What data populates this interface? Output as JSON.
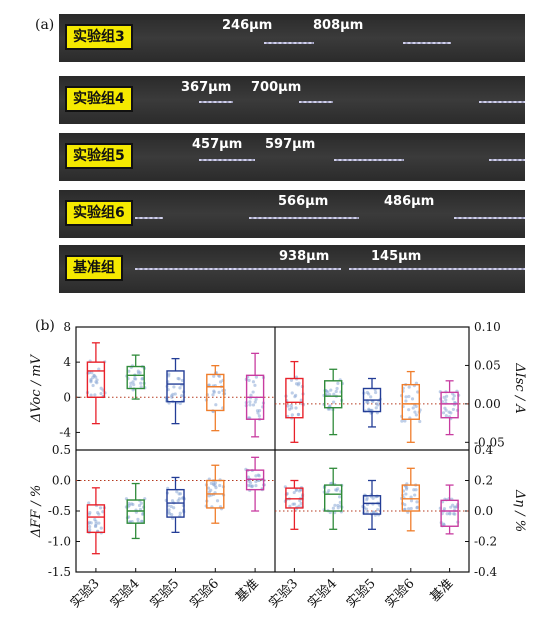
{
  "panel_a": {
    "label": "(a)",
    "strips": [
      {
        "label": "实验组3",
        "measurements": [
          "246μm",
          "808μm"
        ]
      },
      {
        "label": "实验组4",
        "measurements": [
          "367μm",
          "700μm"
        ]
      },
      {
        "label": "实验组5",
        "measurements": [
          "457μm",
          "597μm"
        ]
      },
      {
        "label": "实验组6",
        "measurements": [
          "566μm",
          "486μm"
        ]
      },
      {
        "label": "基准组",
        "measurements": [
          "938μm",
          "145μm"
        ]
      }
    ]
  },
  "panel_b": {
    "label": "(b)",
    "colors": {
      "实验3": "#e8212a",
      "实验4": "#2f8b3a",
      "实验5": "#233d96",
      "实验6": "#ef7d2b",
      "基准": "#c83ca0"
    }
  },
  "chart_data": [
    {
      "type": "box",
      "position": "top-left",
      "ylabel": "ΔVoc / mV",
      "ylim": [
        -6,
        8
      ],
      "yticks": [
        -4,
        0,
        4,
        8
      ],
      "reference_line": 0,
      "categories": [
        "实验3",
        "实验4",
        "实验5",
        "实验6",
        "基准"
      ],
      "boxes": [
        {
          "name": "实验3",
          "whisker_low": -3.0,
          "q1": 0.0,
          "median": 3.0,
          "q3": 4.0,
          "whisker_high": 6.2
        },
        {
          "name": "实验4",
          "whisker_low": -0.2,
          "q1": 1.0,
          "median": 2.5,
          "q3": 3.5,
          "whisker_high": 4.8
        },
        {
          "name": "实验5",
          "whisker_low": -3.0,
          "q1": -0.5,
          "median": 1.5,
          "q3": 3.0,
          "whisker_high": 4.4
        },
        {
          "name": "实验6",
          "whisker_low": -3.8,
          "q1": -1.5,
          "median": 1.2,
          "q3": 2.6,
          "whisker_high": 3.6
        },
        {
          "name": "基准",
          "whisker_low": -4.5,
          "q1": -2.5,
          "median": 0.0,
          "q3": 2.5,
          "whisker_high": 5.0
        }
      ]
    },
    {
      "type": "box",
      "position": "top-right",
      "ylabel": "ΔIsc / A",
      "ylim": [
        -0.06,
        0.1
      ],
      "yticks": [
        -0.05,
        0.0,
        0.05,
        0.1
      ],
      "ytick_labels": [
        "-0.05",
        "0.00",
        "0.05",
        "0.10"
      ],
      "reference_line": 0.0,
      "categories": [
        "实验3",
        "实验4",
        "实验5",
        "实验6",
        "基准"
      ],
      "boxes": [
        {
          "name": "实验3",
          "whisker_low": -0.05,
          "q1": -0.018,
          "median": 0.002,
          "q3": 0.033,
          "whisker_high": 0.055
        },
        {
          "name": "实验4",
          "whisker_low": -0.04,
          "q1": -0.005,
          "median": 0.01,
          "q3": 0.03,
          "whisker_high": 0.045
        },
        {
          "name": "实验5",
          "whisker_low": -0.03,
          "q1": -0.01,
          "median": 0.005,
          "q3": 0.02,
          "whisker_high": 0.033
        },
        {
          "name": "实验6",
          "whisker_low": -0.05,
          "q1": -0.02,
          "median": 0.0,
          "q3": 0.025,
          "whisker_high": 0.042
        },
        {
          "name": "基准",
          "whisker_low": -0.04,
          "q1": -0.018,
          "median": 0.0,
          "q3": 0.015,
          "whisker_high": 0.03
        }
      ]
    },
    {
      "type": "box",
      "position": "bottom-left",
      "ylabel": "ΔFF / %",
      "ylim": [
        -1.5,
        0.5
      ],
      "yticks": [
        -1.5,
        -1.0,
        -0.5,
        0.0,
        0.5
      ],
      "ytick_labels": [
        "-1.5",
        "-1.0",
        "-0.5",
        "0.0",
        "0.5"
      ],
      "reference_line": 0.0,
      "categories": [
        "实验3",
        "实验4",
        "实验5",
        "实验6",
        "基准"
      ],
      "boxes": [
        {
          "name": "实验3",
          "whisker_low": -1.2,
          "q1": -0.85,
          "median": -0.6,
          "q3": -0.4,
          "whisker_high": -0.12
        },
        {
          "name": "实验4",
          "whisker_low": -0.95,
          "q1": -0.7,
          "median": -0.5,
          "q3": -0.32,
          "whisker_high": -0.05
        },
        {
          "name": "实验5",
          "whisker_low": -0.85,
          "q1": -0.6,
          "median": -0.37,
          "q3": -0.15,
          "whisker_high": 0.05
        },
        {
          "name": "实验6",
          "whisker_low": -0.7,
          "q1": -0.45,
          "median": -0.22,
          "q3": 0.0,
          "whisker_high": 0.25
        },
        {
          "name": "基准",
          "whisker_low": -0.5,
          "q1": -0.15,
          "median": 0.02,
          "q3": 0.17,
          "whisker_high": 0.38
        }
      ]
    },
    {
      "type": "box",
      "position": "bottom-right",
      "ylabel": "Δη / %",
      "ylim": [
        -0.4,
        0.4
      ],
      "yticks": [
        -0.4,
        -0.2,
        0.0,
        0.2,
        0.4
      ],
      "ytick_labels": [
        "-0.4",
        "-0.2",
        "0.0",
        "0.2",
        "0.4"
      ],
      "reference_line": 0.0,
      "categories": [
        "实验3",
        "实验4",
        "实验5",
        "实验6",
        "基准"
      ],
      "boxes": [
        {
          "name": "实验3",
          "whisker_low": -0.12,
          "q1": 0.02,
          "median": 0.08,
          "q3": 0.15,
          "whisker_high": 0.2
        },
        {
          "name": "实验4",
          "whisker_low": -0.12,
          "q1": 0.0,
          "median": 0.11,
          "q3": 0.17,
          "whisker_high": 0.28
        },
        {
          "name": "实验5",
          "whisker_low": -0.12,
          "q1": -0.02,
          "median": 0.05,
          "q3": 0.1,
          "whisker_high": 0.2
        },
        {
          "name": "实验6",
          "whisker_low": -0.13,
          "q1": 0.0,
          "median": 0.08,
          "q3": 0.17,
          "whisker_high": 0.28
        },
        {
          "name": "基准",
          "whisker_low": -0.15,
          "q1": -0.1,
          "median": 0.0,
          "q3": 0.07,
          "whisker_high": 0.17
        }
      ]
    }
  ]
}
